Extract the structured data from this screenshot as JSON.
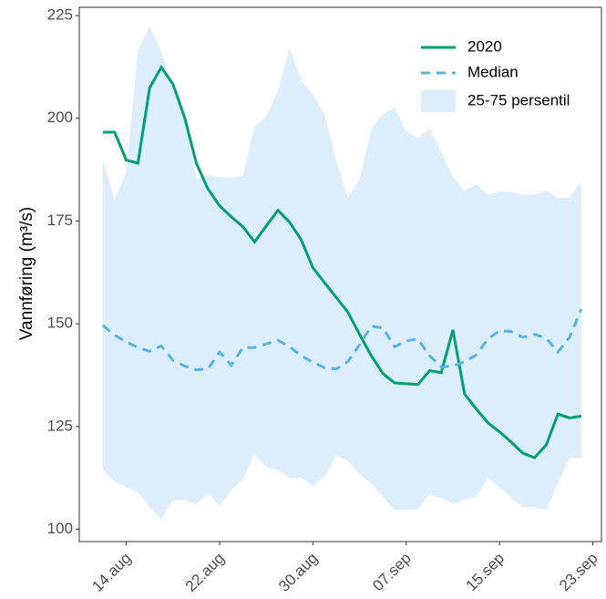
{
  "chart_data": {
    "type": "line",
    "y_label": "Vannføring (m³/s)",
    "categories": [
      null,
      null,
      "14.aug",
      null,
      null,
      null,
      null,
      null,
      null,
      null,
      "22.aug",
      null,
      null,
      null,
      null,
      null,
      null,
      null,
      "30.aug",
      null,
      null,
      null,
      null,
      null,
      null,
      null,
      "07.sep",
      null,
      null,
      null,
      null,
      null,
      null,
      null,
      "15.sep",
      null,
      null,
      null,
      null,
      null,
      null,
      null,
      "23.sep"
    ],
    "series": [
      {
        "name": "2020",
        "color": "#009e73",
        "dash": false,
        "values": [
          196.6,
          196.6,
          189.8,
          189.1,
          207.4,
          212.4,
          208.3,
          200.2,
          189.1,
          182.8,
          178.7,
          176.0,
          173.6,
          169.9,
          173.8,
          177.6,
          174.7,
          170.4,
          163.6,
          160.0,
          156.4,
          152.8,
          147.4,
          142.2,
          137.9,
          135.6,
          135.4,
          135.2,
          138.6,
          138.1,
          148.5,
          132.9,
          129.3,
          125.9,
          123.7,
          121.2,
          118.5,
          117.4,
          120.5,
          128.0,
          127.1,
          127.5,
          null
        ]
      },
      {
        "name": "Median",
        "color": "#56b4e9",
        "dash": true,
        "values": [
          149.6,
          147.2,
          145.6,
          144.2,
          143.3,
          144.6,
          141.1,
          139.7,
          138.8,
          139.0,
          143.1,
          139.9,
          144.2,
          144.2,
          145.1,
          146.0,
          144.4,
          142.2,
          140.6,
          139.3,
          139.0,
          140.8,
          144.9,
          149.4,
          149.0,
          144.4,
          145.8,
          146.3,
          142.2,
          139.5,
          139.7,
          140.8,
          142.4,
          146.3,
          148.3,
          148.1,
          146.7,
          147.4,
          146.5,
          143.1,
          146.7,
          153.5,
          null
        ]
      }
    ],
    "band": {
      "name": "25-75 persentil",
      "color": "#dceefb",
      "upper": [
        190.0,
        180.1,
        186.9,
        216.6,
        222.3,
        216.2,
        207.6,
        200.9,
        185.1,
        186.2,
        185.7,
        185.5,
        186.0,
        197.9,
        200.6,
        206.5,
        217.3,
        209.2,
        205.8,
        200.9,
        189.6,
        180.6,
        185.1,
        197.5,
        200.9,
        202.7,
        196.8,
        195.2,
        197.5,
        191.8,
        185.7,
        182.4,
        183.9,
        181.4,
        182.1,
        182.1,
        181.4,
        181.4,
        182.4,
        180.6,
        180.6,
        184.4,
        null
      ],
      "lower": [
        114.4,
        111.7,
        110.2,
        109.0,
        105.4,
        102.5,
        107.2,
        107.2,
        106.1,
        108.8,
        105.7,
        109.5,
        112.2,
        118.5,
        115.1,
        114.4,
        112.4,
        112.6,
        110.6,
        112.8,
        118.0,
        116.7,
        113.3,
        111.3,
        107.9,
        104.7,
        104.7,
        104.9,
        108.4,
        107.7,
        106.1,
        107.2,
        107.9,
        112.4,
        110.2,
        107.7,
        105.4,
        105.4,
        104.7,
        111.1,
        117.4,
        117.4,
        null
      ]
    },
    "ylim": [
      97,
      227
    ],
    "yticks": [
      100,
      125,
      150,
      175,
      200,
      225
    ],
    "grid": false,
    "legend": "top-right"
  }
}
